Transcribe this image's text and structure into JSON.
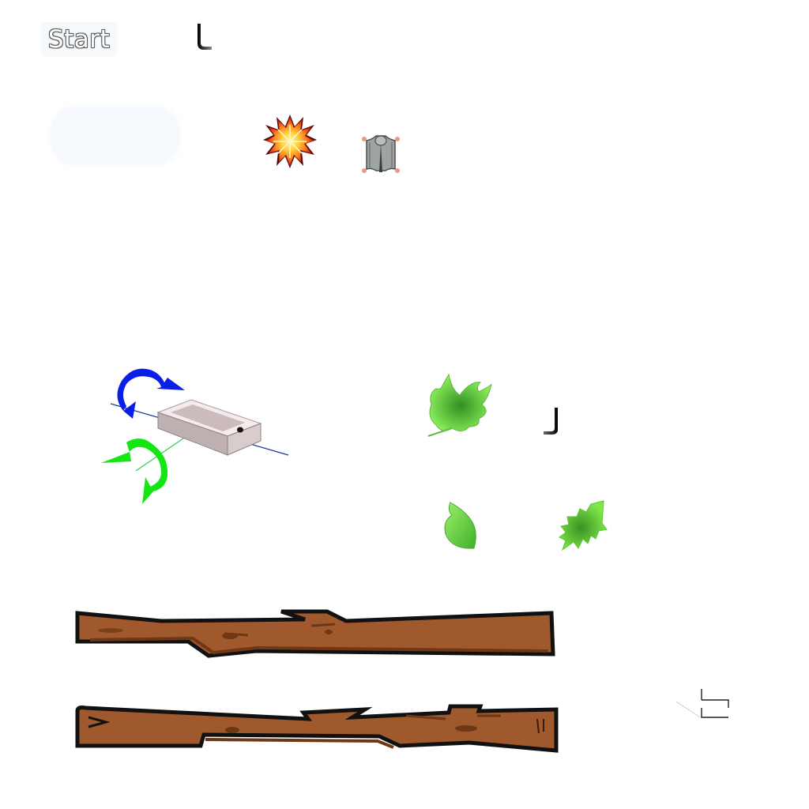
{
  "menu": {
    "start_label": "Start"
  },
  "icons": {
    "hook_top": "hook-glyph-icon",
    "hook_right": "hook-glyph-icon",
    "explosion": "explosion-icon",
    "flying_squirrel": "flying-squirrel-icon",
    "phone_tilt": "phone-tilt-rotation-icon",
    "leaf_maple": "maple-leaf-icon",
    "leaf_oval": "oval-leaf-icon",
    "leaf_spiky": "spiky-leaf-icon",
    "branch_top": "tree-branch-icon",
    "branch_bottom": "tree-branch-icon",
    "corner_marker": "corner-bracket-icon"
  },
  "colors": {
    "branch_fill": "#a0592c",
    "branch_outline": "#111111",
    "leaf_green": "#5fd43a",
    "rotation_blue": "#0a1fe6",
    "rotation_green": "#14e614",
    "phone_body": "#d8cccc"
  }
}
